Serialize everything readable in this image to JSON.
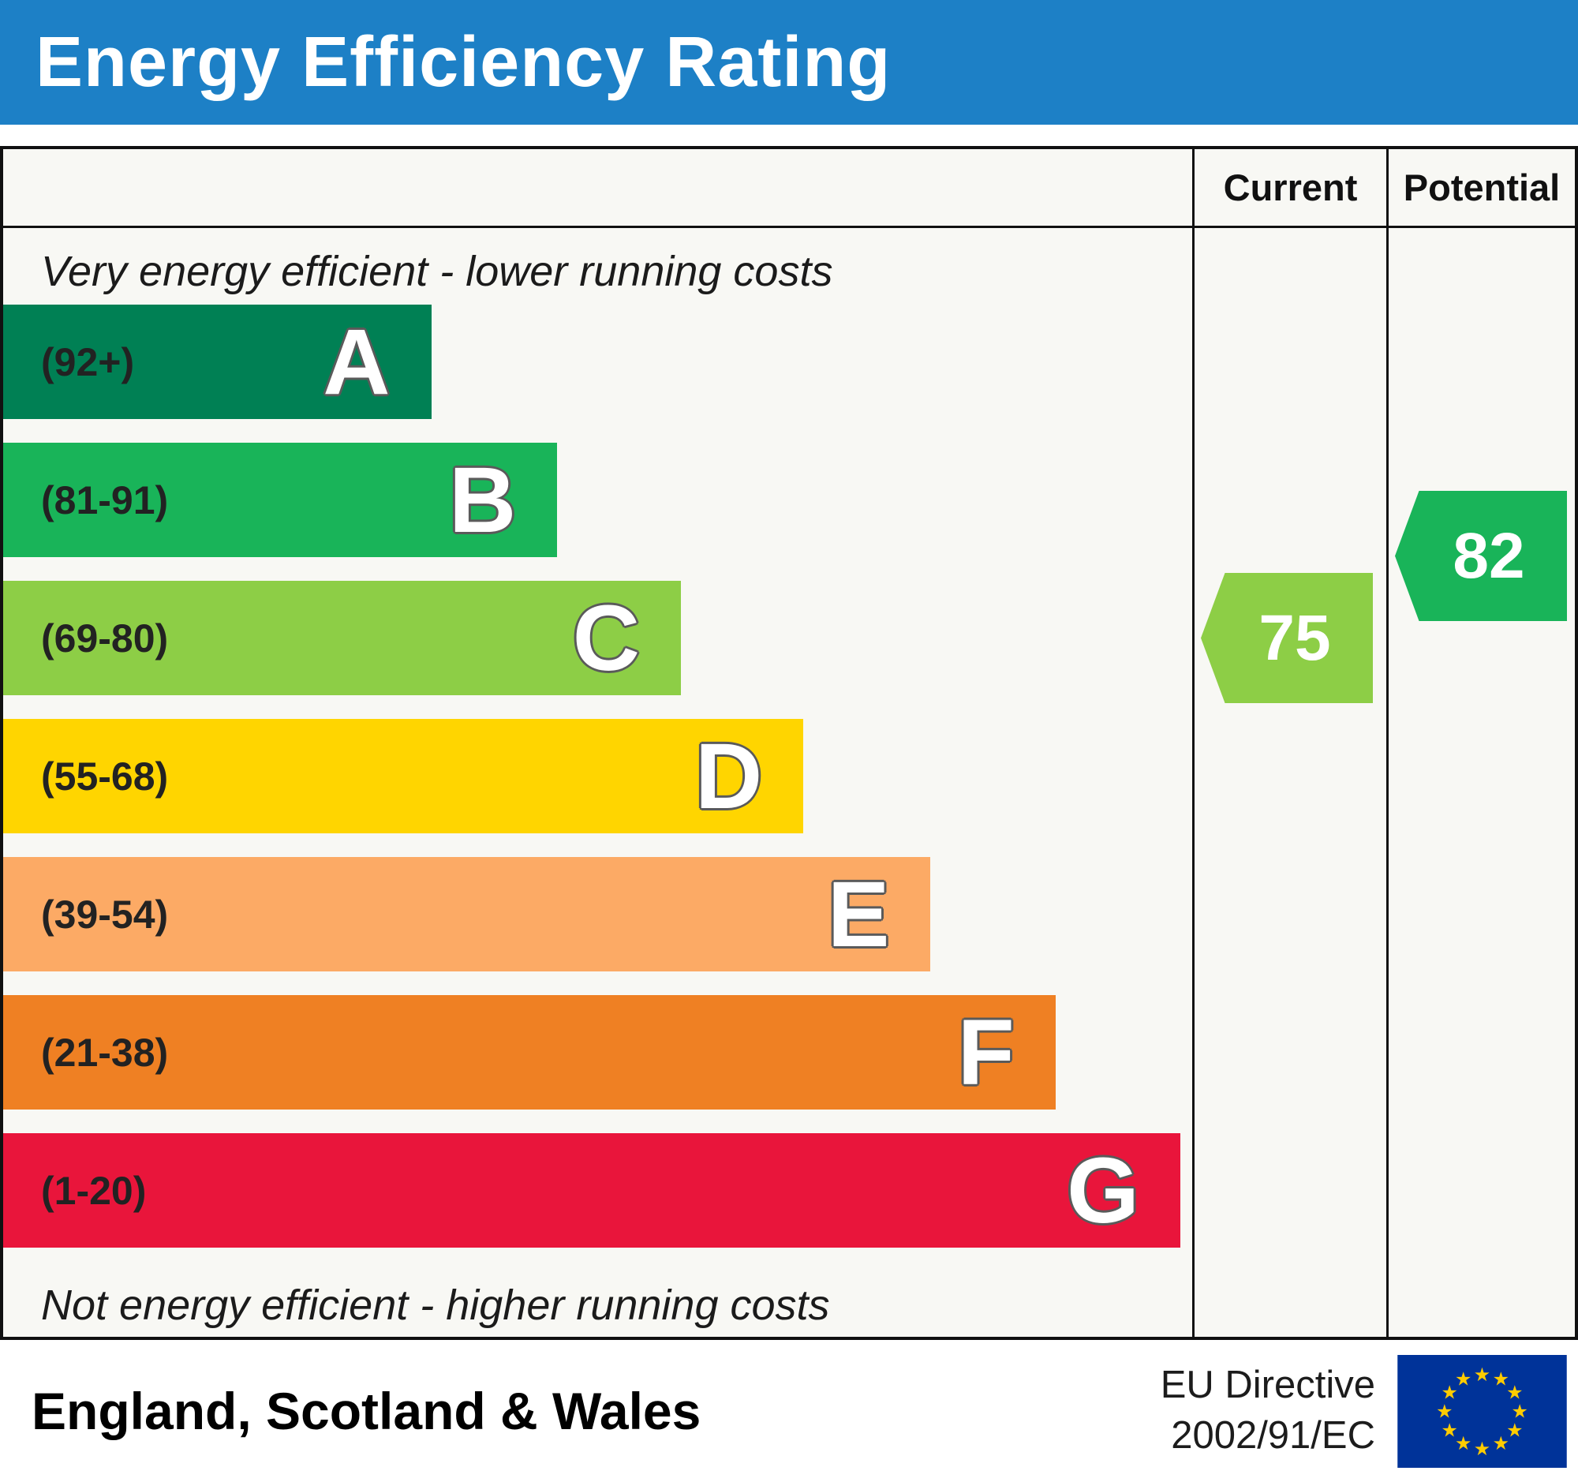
{
  "title": "Energy Efficiency Rating",
  "columns": {
    "current": "Current",
    "potential": "Potential"
  },
  "captions": {
    "top": "Very energy efficient - lower running costs",
    "bottom": "Not energy efficient - higher running costs"
  },
  "footer": {
    "region": "England, Scotland & Wales",
    "directive_line1": "EU Directive",
    "directive_line2": "2002/91/EC",
    "flag": "eu-flag"
  },
  "colors": {
    "header_bg": "#1d80c6",
    "border": "#111111",
    "flag_blue": "#003399",
    "flag_star": "#ffcc00"
  },
  "chart_data": {
    "type": "bar",
    "title": "Energy Efficiency Rating",
    "region": "England, Scotland & Wales",
    "directive": "EU Directive 2002/91/EC",
    "bands": [
      {
        "letter": "A",
        "range": "(92+)",
        "min": 92,
        "max": 100,
        "color": "#008054",
        "width_pct": 36
      },
      {
        "letter": "B",
        "range": "(81-91)",
        "min": 81,
        "max": 91,
        "color": "#19b459",
        "width_pct": 46.6
      },
      {
        "letter": "C",
        "range": "(69-80)",
        "min": 69,
        "max": 80,
        "color": "#8dce46",
        "width_pct": 57
      },
      {
        "letter": "D",
        "range": "(55-68)",
        "min": 55,
        "max": 68,
        "color": "#ffd500",
        "width_pct": 67.3
      },
      {
        "letter": "E",
        "range": "(39-54)",
        "min": 39,
        "max": 54,
        "color": "#fcaa65",
        "width_pct": 78
      },
      {
        "letter": "F",
        "range": "(21-38)",
        "min": 21,
        "max": 38,
        "color": "#ef8023",
        "width_pct": 88.5
      },
      {
        "letter": "G",
        "range": "(1-20)",
        "min": 1,
        "max": 20,
        "color": "#e9153b",
        "width_pct": 99
      }
    ],
    "current": {
      "label": "Current",
      "value": 75,
      "band": "C",
      "color": "#8dce46"
    },
    "potential": {
      "label": "Potential",
      "value": 82,
      "band": "B",
      "color": "#19b459"
    }
  }
}
